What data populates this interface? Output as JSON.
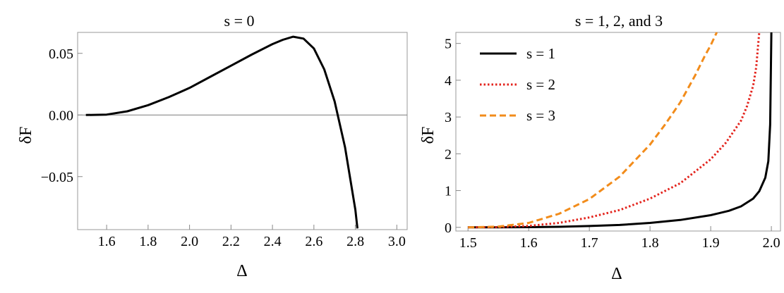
{
  "chart_data": [
    {
      "type": "line",
      "title": "s = 0",
      "xlabel": "Δ",
      "ylabel": "δF",
      "xlim": [
        1.46,
        3.05
      ],
      "ylim": [
        -0.093,
        0.067
      ],
      "xticks": [
        "1.6",
        "1.8",
        "2.0",
        "2.2",
        "2.4",
        "2.6",
        "2.8",
        "3.0"
      ],
      "yticks": [
        "0.05",
        "0.00",
        "−0.05"
      ],
      "ytick_values": [
        0.05,
        0.0,
        -0.05
      ],
      "reference_line": 0,
      "grid": false,
      "series": [
        {
          "color": "#000000",
          "style": "solid",
          "x": [
            1.5,
            1.6,
            1.7,
            1.8,
            1.9,
            2.0,
            2.1,
            2.2,
            2.3,
            2.4,
            2.45,
            2.5,
            2.55,
            2.6,
            2.65,
            2.7,
            2.75,
            2.8,
            2.81
          ],
          "y": [
            0.0,
            0.0003,
            0.003,
            0.008,
            0.0145,
            0.022,
            0.031,
            0.04,
            0.049,
            0.0575,
            0.061,
            0.0635,
            0.062,
            0.054,
            0.037,
            0.011,
            -0.026,
            -0.077,
            -0.092
          ]
        }
      ]
    },
    {
      "type": "line",
      "title": "s = 1, 2, and 3",
      "xlabel": "Δ",
      "ylabel": "δF",
      "xlim": [
        1.48,
        2.015
      ],
      "ylim": [
        -0.1,
        5.3
      ],
      "xticks": [
        "1.5",
        "1.6",
        "1.7",
        "1.8",
        "1.9",
        "2.0"
      ],
      "yticks": [
        "0",
        "1",
        "2",
        "3",
        "4",
        "5"
      ],
      "grid": false,
      "legend_position": "top-left",
      "series": [
        {
          "name": "s = 1",
          "color": "#000000",
          "style": "solid",
          "x": [
            1.5,
            1.55,
            1.6,
            1.65,
            1.7,
            1.75,
            1.8,
            1.85,
            1.9,
            1.93,
            1.95,
            1.97,
            1.98,
            1.99,
            1.995,
            1.998,
            2.0
          ],
          "y": [
            0.0,
            0.0,
            0.005,
            0.015,
            0.035,
            0.065,
            0.12,
            0.2,
            0.33,
            0.45,
            0.57,
            0.78,
            0.98,
            1.35,
            1.8,
            2.8,
            5.3
          ]
        },
        {
          "name": "s = 2",
          "color": "#e3231c",
          "style": "dotted",
          "x": [
            1.5,
            1.55,
            1.6,
            1.65,
            1.7,
            1.75,
            1.8,
            1.85,
            1.9,
            1.925,
            1.95,
            1.96,
            1.97,
            1.975,
            1.98
          ],
          "y": [
            0.0,
            0.005,
            0.04,
            0.12,
            0.27,
            0.47,
            0.78,
            1.2,
            1.85,
            2.3,
            2.9,
            3.3,
            3.85,
            4.35,
            5.3
          ]
        },
        {
          "name": "s = 3",
          "color": "#f28c1b",
          "style": "dashed",
          "x": [
            1.5,
            1.55,
            1.6,
            1.65,
            1.7,
            1.75,
            1.8,
            1.825,
            1.85,
            1.875,
            1.89,
            1.9,
            1.91
          ],
          "y": [
            0.0,
            0.02,
            0.12,
            0.37,
            0.77,
            1.38,
            2.25,
            2.8,
            3.4,
            4.15,
            4.65,
            4.95,
            5.3
          ]
        }
      ]
    }
  ]
}
